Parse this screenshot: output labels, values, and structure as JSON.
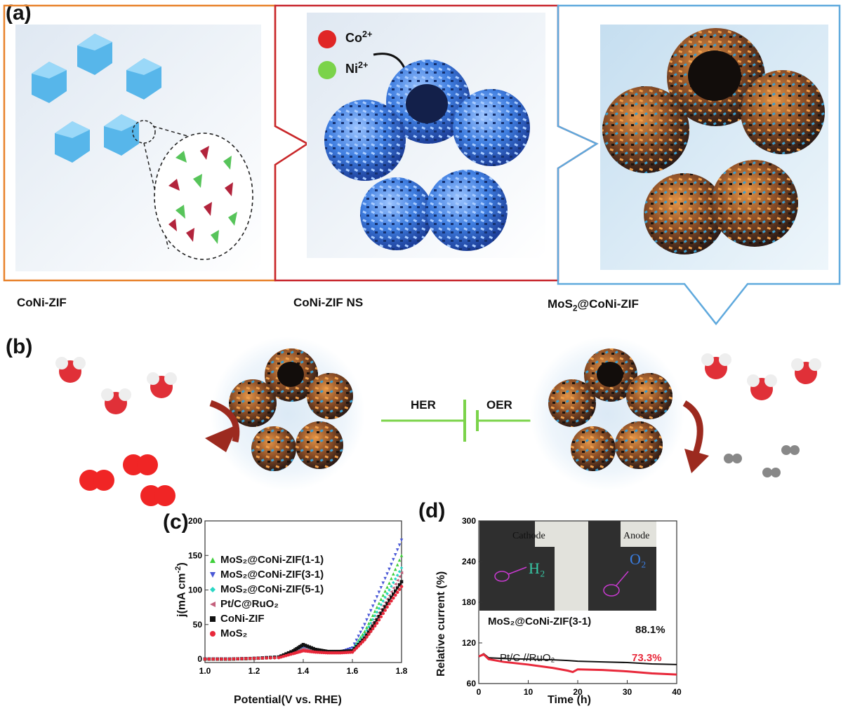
{
  "panel_a": {
    "label": "(a)",
    "caption_left": "CoNi-ZIF",
    "caption_mid": "CoNi-ZIF NS",
    "caption_right_pre": "MoS",
    "caption_right_sub": "2",
    "caption_right_post": "@CoNi-ZIF",
    "ion_co": "Co",
    "ion_co_sup": "2+",
    "ion_ni": "Ni",
    "ion_ni_sup": "2+",
    "colors": {
      "frame_left": "#e8822b",
      "frame_mid": "#c8262d",
      "frame_right": "#5fa9dd"
    }
  },
  "panel_b": {
    "label": "(b)",
    "her": "HER",
    "oer": "OER"
  },
  "panel_c": {
    "label": "(c)",
    "ylabel_pre": "j(mA cm",
    "ylabel_sup": "-2",
    "ylabel_post": ")",
    "xlabel": "Potential(V vs. RHE)",
    "xticks": [
      "1.0",
      "1.2",
      "1.4",
      "1.6",
      "1.8"
    ],
    "yticks": [
      "0",
      "50",
      "100",
      "150",
      "200"
    ],
    "legend": [
      {
        "label": "MoS₂@CoNi-ZIF(1-1)",
        "color": "#3fcf3a",
        "marker": "triangle-up"
      },
      {
        "label": "MoS₂@CoNi-ZIF(3-1)",
        "color": "#4a58d6",
        "marker": "triangle-down"
      },
      {
        "label": "MoS₂@CoNi-ZIF(5-1)",
        "color": "#29d6c4",
        "marker": "diamond"
      },
      {
        "label": "Pt/C@RuO₂",
        "color": "#c4607c",
        "marker": "triangle-left"
      },
      {
        "label": "CoNi-ZIF",
        "color": "#111111",
        "marker": "square"
      },
      {
        "label": "MoS₂",
        "color": "#e8283a",
        "marker": "circle"
      }
    ]
  },
  "panel_d": {
    "label": "(d)",
    "ylabel": "Relative current (%)",
    "xlabel": "Time (h)",
    "xticks": [
      "0",
      "10",
      "20",
      "30",
      "40"
    ],
    "yticks": [
      "60",
      "120",
      "180",
      "240",
      "300"
    ],
    "inset_cathode": "Cathode",
    "inset_anode": "Anode",
    "inset_h2": "H₂",
    "inset_o2": "O₂",
    "series1_label": "MoS₂@CoNi-ZIF(3-1)",
    "series1_value": "88.1%",
    "series2_label": "Pt/C //RuO₂",
    "series2_value": "73.3%",
    "colors": {
      "s1": "#111111",
      "s2": "#e8283a"
    }
  },
  "chart_data": [
    {
      "type": "scatter",
      "xlabel": "Potential(V vs. RHE)",
      "ylabel": "j(mA cm-2)",
      "xlim": [
        1.0,
        1.8
      ],
      "ylim": [
        -5,
        200
      ],
      "series": [
        {
          "name": "MoS₂@CoNi-ZIF(1-1)",
          "x": [
            1.0,
            1.1,
            1.2,
            1.3,
            1.36,
            1.4,
            1.45,
            1.5,
            1.55,
            1.6,
            1.65,
            1.7,
            1.75,
            1.8
          ],
          "y": [
            0,
            0,
            1,
            3,
            10,
            18,
            12,
            10,
            10,
            14,
            40,
            75,
            110,
            150
          ]
        },
        {
          "name": "MoS₂@CoNi-ZIF(3-1)",
          "x": [
            1.0,
            1.1,
            1.2,
            1.3,
            1.36,
            1.4,
            1.45,
            1.5,
            1.55,
            1.6,
            1.65,
            1.7,
            1.75,
            1.8
          ],
          "y": [
            0,
            0,
            1,
            3,
            9,
            16,
            12,
            10,
            10,
            16,
            50,
            90,
            130,
            172
          ]
        },
        {
          "name": "MoS₂@CoNi-ZIF(5-1)",
          "x": [
            1.0,
            1.1,
            1.2,
            1.3,
            1.36,
            1.4,
            1.45,
            1.5,
            1.55,
            1.6,
            1.65,
            1.7,
            1.75,
            1.8
          ],
          "y": [
            0,
            0,
            1,
            3,
            9,
            15,
            11,
            10,
            10,
            13,
            36,
            68,
            100,
            132
          ]
        },
        {
          "name": "Pt/C@RuO₂",
          "x": [
            1.0,
            1.1,
            1.2,
            1.3,
            1.36,
            1.4,
            1.45,
            1.5,
            1.55,
            1.6,
            1.65,
            1.7,
            1.75,
            1.8
          ],
          "y": [
            0,
            0,
            1,
            3,
            9,
            15,
            11,
            10,
            10,
            12,
            33,
            62,
            92,
            125
          ]
        },
        {
          "name": "CoNi-ZIF",
          "x": [
            1.0,
            1.1,
            1.2,
            1.3,
            1.36,
            1.4,
            1.45,
            1.5,
            1.55,
            1.6,
            1.65,
            1.7,
            1.75,
            1.8
          ],
          "y": [
            0,
            0,
            1,
            3,
            12,
            21,
            14,
            11,
            11,
            12,
            30,
            57,
            85,
            112
          ]
        },
        {
          "name": "MoS₂",
          "x": [
            1.0,
            1.1,
            1.2,
            1.3,
            1.36,
            1.4,
            1.45,
            1.5,
            1.55,
            1.6,
            1.65,
            1.7,
            1.75,
            1.8
          ],
          "y": [
            0,
            0,
            1,
            2,
            8,
            12,
            10,
            9,
            9,
            10,
            28,
            52,
            80,
            105
          ]
        }
      ]
    },
    {
      "type": "line",
      "xlabel": "Time (h)",
      "ylabel": "Relative current (%)",
      "xlim": [
        0,
        40
      ],
      "ylim": [
        60,
        300
      ],
      "series": [
        {
          "name": "MoS₂@CoNi-ZIF(3-1)",
          "x": [
            0,
            1,
            2,
            5,
            10,
            15,
            18,
            20,
            25,
            30,
            35,
            40
          ],
          "y": [
            100,
            104,
            98,
            97,
            96,
            95,
            94,
            93,
            92,
            91,
            89,
            88.1
          ]
        },
        {
          "name": "Pt/C //RuO₂",
          "x": [
            0,
            1,
            2,
            5,
            10,
            15,
            18,
            19,
            20,
            25,
            30,
            35,
            40
          ],
          "y": [
            100,
            103,
            96,
            92,
            88,
            83,
            79,
            77,
            81,
            80,
            78,
            75,
            73.3
          ]
        }
      ]
    }
  ]
}
